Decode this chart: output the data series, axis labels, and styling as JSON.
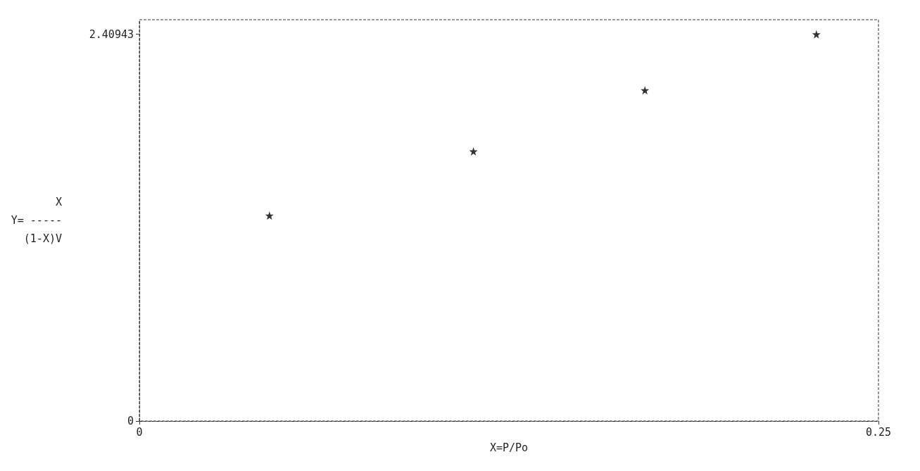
{
  "chart_data": {
    "type": "scatter",
    "xlabel": "X=P/Po",
    "ylabel": "X\nY= -----\n(1-X)V",
    "x": [
      0.044,
      0.113,
      0.171,
      0.229
    ],
    "values": [
      1.28,
      1.68,
      2.06,
      2.409
    ],
    "color": "#000000",
    "marker": "star",
    "grid": false,
    "xlim": [
      0,
      0.25
    ],
    "xticks": [
      0,
      0.25
    ],
    "ylim": [
      0,
      2.5
    ],
    "yticks": [
      0,
      2.40943
    ]
  }
}
